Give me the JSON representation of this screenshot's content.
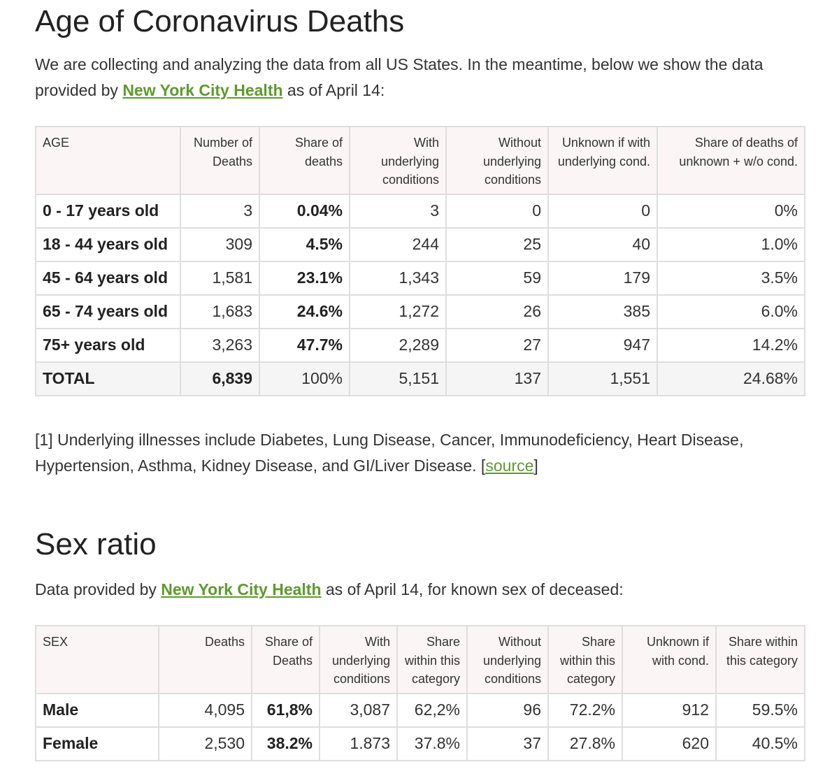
{
  "age_section": {
    "title": "Age of Coronavirus Deaths",
    "intro_part1": "We are collecting and analyzing the data from all US States. In the meantime, below we show the data provided by ",
    "intro_link": "New York City Health",
    "intro_part2": " as of April 14:",
    "table": {
      "headers": [
        "AGE",
        "Number of Deaths",
        "Share of deaths",
        "With underlying conditions",
        "Without underlying conditions",
        "Unknown if with underlying cond.",
        "Share of deaths of unknown + w/o cond."
      ],
      "rows": [
        [
          "0 - 17 years old",
          "3",
          "0.04%",
          "3",
          "0",
          "0",
          "0%"
        ],
        [
          "18 - 44 years old",
          "309",
          "4.5%",
          "244",
          "25",
          "40",
          "1.0%"
        ],
        [
          "45 - 64 years old",
          "1,581",
          "23.1%",
          "1,343",
          "59",
          "179",
          "3.5%"
        ],
        [
          "65 - 74 years old",
          "1,683",
          "24.6%",
          "1,272",
          "26",
          "385",
          "6.0%"
        ],
        [
          "75+ years old",
          "3,263",
          "47.7%",
          "2,289",
          "27",
          "947",
          "14.2%"
        ],
        [
          "TOTAL",
          "6,839",
          "100%",
          "5,151",
          "137",
          "1,551",
          "24.68%"
        ]
      ]
    },
    "footnote_text": "[1] Underlying illnesses include Diabetes, Lung Disease, Cancer, Immunodeficiency, Heart Disease, Hypertension, Asthma, Kidney Disease, and GI/Liver Disease. [",
    "footnote_link": "source",
    "footnote_end": "]"
  },
  "sex_section": {
    "title": "Sex ratio",
    "intro_part1": "Data provided by ",
    "intro_link": "New York City Health",
    "intro_part2": " as of April 14, for known sex of deceased:",
    "table": {
      "headers": [
        "SEX",
        "Deaths",
        "Share of Deaths",
        "With underlying conditions",
        "Share within this category",
        "Without underlying conditions",
        "Share within this category",
        "Unknown if with cond.",
        "Share within this category"
      ],
      "rows": [
        [
          "Male",
          "4,095",
          "61,8%",
          "3,087",
          "62,2%",
          "96",
          "72.2%",
          "912",
          "59.5%"
        ],
        [
          "Female",
          "2,530",
          "38.2%",
          "1.873",
          "37.8%",
          "37",
          "27.8%",
          "620",
          "40.5%"
        ]
      ]
    }
  },
  "colors": {
    "link": "#5e9a2d",
    "header_bg": "#fcf5f5",
    "total_bg": "#f5f5f5",
    "border": "#dedede"
  }
}
